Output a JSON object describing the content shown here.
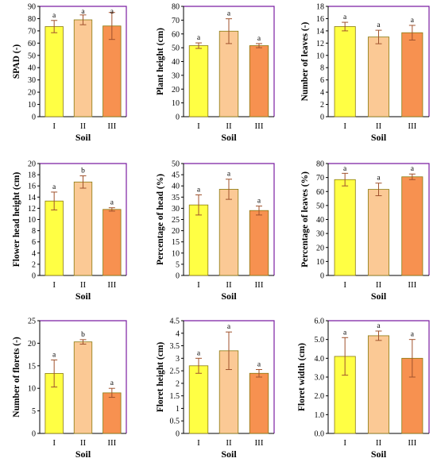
{
  "colors": {
    "I": "#ffff44",
    "II": "#fbc995",
    "III": "#f79150",
    "bar_edge": "#8a7a10",
    "error": "#a0522d",
    "frame": "#7b1fa2"
  },
  "chart_data": [
    {
      "type": "bar",
      "ylabel": "SPAD (-)",
      "xlabel": "Soil",
      "categories": [
        "I",
        "II",
        "III"
      ],
      "values": [
        73.5,
        79,
        74
      ],
      "errors": [
        5,
        4,
        11
      ],
      "letters": [
        "a",
        "a",
        "a"
      ],
      "ylim": [
        0,
        90
      ],
      "yticks": [
        0,
        10,
        20,
        30,
        40,
        50,
        60,
        70,
        80,
        90
      ],
      "ytick_labels": [
        "0",
        "10",
        "20",
        "30",
        "40",
        "50",
        "60",
        "70",
        "80",
        "90"
      ]
    },
    {
      "type": "bar",
      "ylabel": "Plant height (cm)",
      "xlabel": "Soil",
      "categories": [
        "I",
        "II",
        "III"
      ],
      "values": [
        51.5,
        62,
        51.5
      ],
      "errors": [
        2,
        9,
        1.5
      ],
      "letters": [
        "a",
        "a",
        "a"
      ],
      "ylim": [
        0,
        80
      ],
      "yticks": [
        0,
        10,
        20,
        30,
        40,
        50,
        60,
        70,
        80
      ],
      "ytick_labels": [
        "0",
        "10",
        "20",
        "30",
        "40",
        "50",
        "60",
        "70",
        "80"
      ]
    },
    {
      "type": "bar",
      "ylabel": "Number of leaves (-)",
      "xlabel": "Soil",
      "categories": [
        "I",
        "II",
        "III"
      ],
      "values": [
        14.7,
        13,
        13.7
      ],
      "errors": [
        0.7,
        1.1,
        1.2
      ],
      "letters": [
        "a",
        "a",
        "a"
      ],
      "ylim": [
        0,
        18
      ],
      "yticks": [
        0,
        2,
        4,
        6,
        8,
        10,
        12,
        14,
        16,
        18
      ],
      "ytick_labels": [
        "0",
        "2",
        "4",
        "6",
        "8",
        "10",
        "12",
        "14",
        "16",
        "18"
      ]
    },
    {
      "type": "bar",
      "ylabel": "Flower head height (cm)",
      "xlabel": "Soil",
      "categories": [
        "I",
        "II",
        "III"
      ],
      "values": [
        13.3,
        16.7,
        11.8
      ],
      "errors": [
        1.6,
        1.1,
        0.3
      ],
      "letters": [
        "a",
        "b",
        "a"
      ],
      "ylim": [
        0,
        20
      ],
      "yticks": [
        0,
        2,
        4,
        6,
        8,
        10,
        12,
        14,
        16,
        18,
        20
      ],
      "ytick_labels": [
        "0",
        "2",
        "4",
        "6",
        "8",
        "10",
        "12",
        "14",
        "16",
        "18",
        "20"
      ]
    },
    {
      "type": "bar",
      "ylabel": "Percentage of head (%)",
      "xlabel": "Soil",
      "categories": [
        "I",
        "II",
        "III"
      ],
      "values": [
        31.5,
        38.5,
        29
      ],
      "errors": [
        4.5,
        4.5,
        2
      ],
      "letters": [
        "a",
        "a",
        "a"
      ],
      "ylim": [
        0,
        50
      ],
      "yticks": [
        0,
        5,
        10,
        15,
        20,
        25,
        30,
        35,
        40,
        45,
        50
      ],
      "ytick_labels": [
        "0",
        "5",
        "10",
        "15",
        "20",
        "25",
        "30",
        "35",
        "40",
        "45",
        "50"
      ]
    },
    {
      "type": "bar",
      "ylabel": "Percentage of leaves (%)",
      "xlabel": "Soil",
      "categories": [
        "I",
        "II",
        "III"
      ],
      "values": [
        68.5,
        61.5,
        70.5
      ],
      "errors": [
        4.5,
        4.5,
        2
      ],
      "letters": [
        "a",
        "a",
        "a"
      ],
      "ylim": [
        0,
        80
      ],
      "yticks": [
        0,
        10,
        20,
        30,
        40,
        50,
        60,
        70,
        80
      ],
      "ytick_labels": [
        "0",
        "10",
        "20",
        "30",
        "40",
        "50",
        "60",
        "70",
        "80"
      ]
    },
    {
      "type": "bar",
      "ylabel": "Number of florets (-)",
      "xlabel": "Soil",
      "categories": [
        "I",
        "II",
        "III"
      ],
      "values": [
        13.3,
        20.3,
        9
      ],
      "errors": [
        3,
        0.5,
        1
      ],
      "letters": [
        "a",
        "b",
        "a"
      ],
      "ylim": [
        0,
        25
      ],
      "yticks": [
        0,
        5,
        10,
        15,
        20,
        25
      ],
      "ytick_labels": [
        "0",
        "5",
        "10",
        "15",
        "20",
        "25"
      ]
    },
    {
      "type": "bar",
      "ylabel": "Floret height (cm)",
      "xlabel": "Soil",
      "categories": [
        "I",
        "II",
        "III"
      ],
      "values": [
        2.7,
        3.3,
        2.4
      ],
      "errors": [
        0.3,
        0.75,
        0.15
      ],
      "letters": [
        "a",
        "a",
        "a"
      ],
      "ylim": [
        0,
        4.5
      ],
      "yticks": [
        0,
        0.5,
        1,
        1.5,
        2,
        2.5,
        3,
        3.5,
        4,
        4.5
      ],
      "ytick_labels": [
        "0",
        "0.5",
        "1",
        "1.5",
        "2",
        "2.5",
        "3",
        "3.5",
        "4",
        "4.5"
      ]
    },
    {
      "type": "bar",
      "ylabel": "Floret width (cm)",
      "xlabel": "Soil",
      "categories": [
        "I",
        "II",
        "III"
      ],
      "values": [
        4.1,
        5.2,
        4
      ],
      "errors": [
        1,
        0.25,
        1
      ],
      "letters": [
        "a",
        "a",
        "a"
      ],
      "ylim": [
        0,
        6
      ],
      "yticks": [
        0,
        1,
        2,
        3,
        4,
        5,
        6
      ],
      "ytick_labels": [
        "0.0",
        "1.0",
        "2.0",
        "3.0",
        "4.0",
        "5.0",
        "6.0"
      ]
    }
  ]
}
